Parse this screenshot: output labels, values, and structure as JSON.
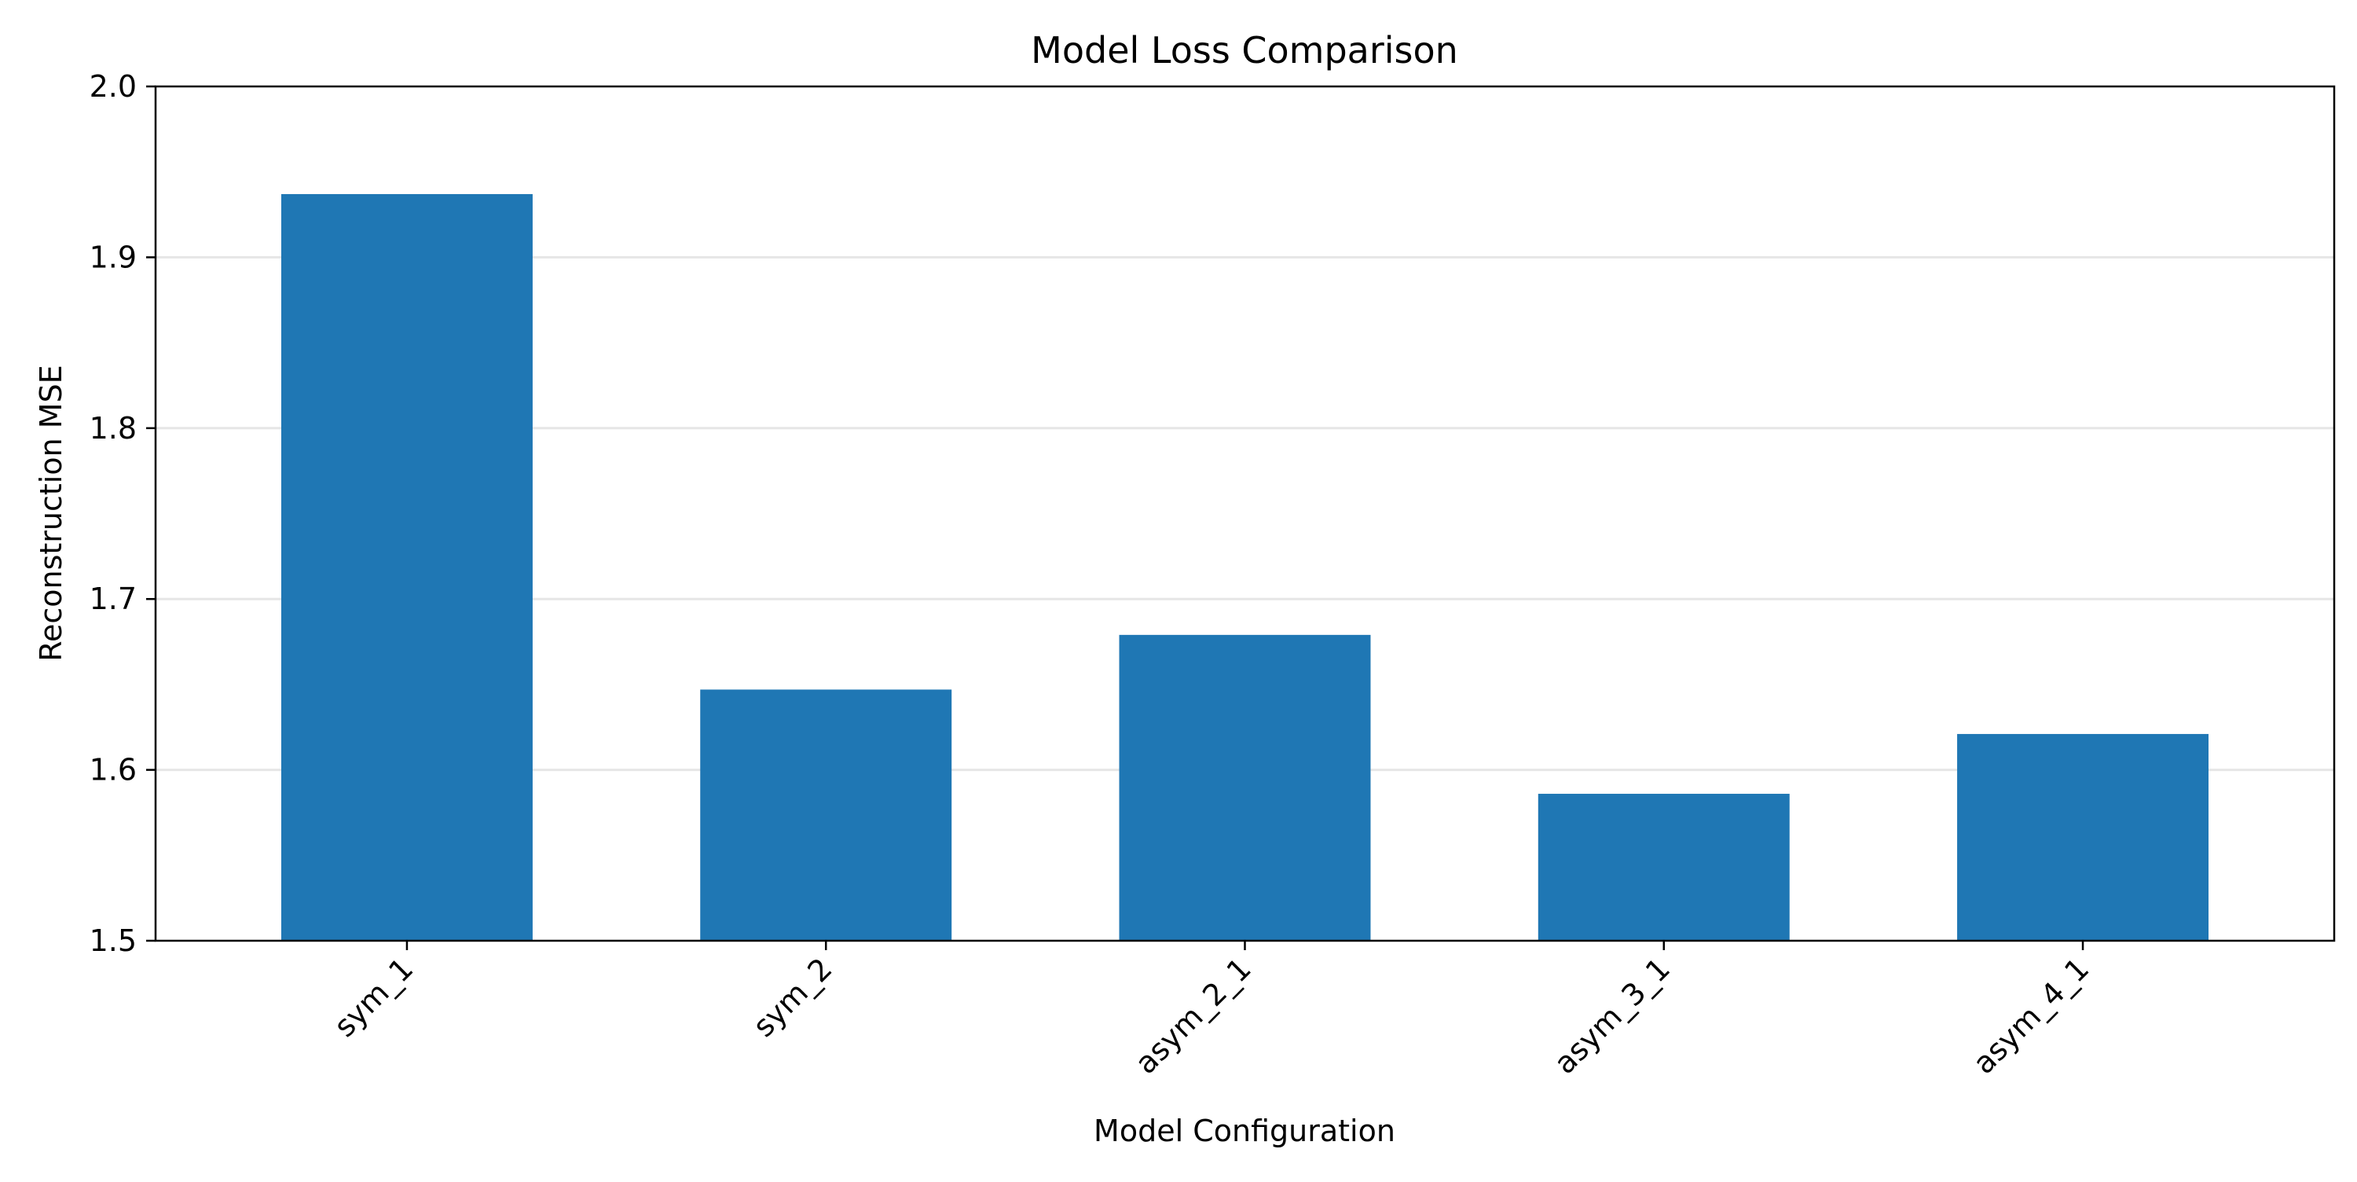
{
  "chart_data": {
    "type": "bar",
    "title": "Model Loss Comparison",
    "xlabel": "Model Configuration",
    "ylabel": "Reconstruction MSE",
    "categories": [
      "sym_1",
      "sym_2",
      "asym_2_1",
      "asym_3_1",
      "asym_4_1"
    ],
    "values": [
      1.937,
      1.647,
      1.679,
      1.586,
      1.621
    ],
    "ylim": [
      1.5,
      2.0
    ],
    "yticks": [
      "1.5",
      "1.6",
      "1.7",
      "1.8",
      "1.9",
      "2.0"
    ],
    "grid": "horizontal",
    "bar_color": "#1f77b4",
    "grid_color": "#e6e6e6"
  }
}
